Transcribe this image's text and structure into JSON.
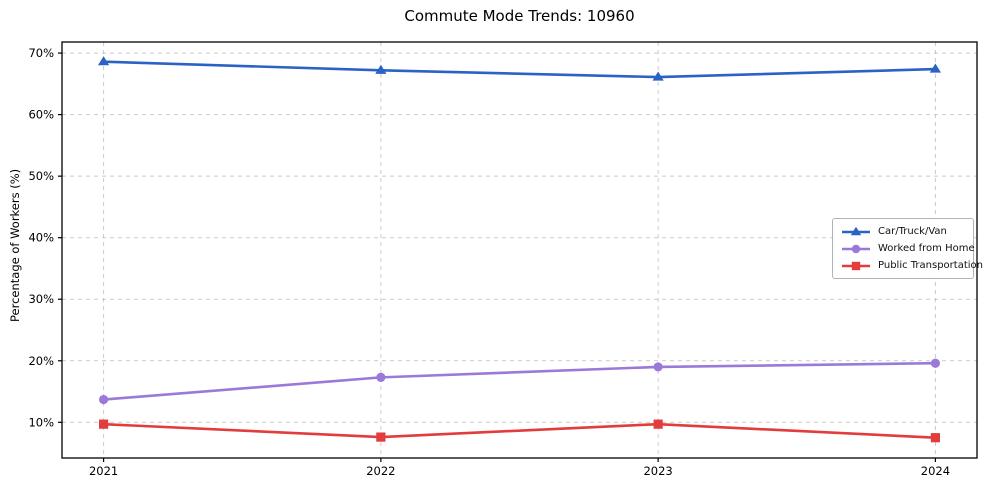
{
  "chart_data": {
    "type": "line",
    "title": "Commute Mode Trends: 10960",
    "xlabel": "",
    "ylabel": "Percentage of Workers (%)",
    "categories": [
      2021,
      2022,
      2023,
      2024
    ],
    "series": [
      {
        "name": "Car/Truck/Van",
        "marker": "triangle",
        "color": "#2b62c5",
        "values": [
          68.6,
          67.2,
          66.1,
          67.4
        ]
      },
      {
        "name": "Worked from Home",
        "marker": "circle",
        "color": "#9b79d9",
        "values": [
          13.7,
          17.3,
          19.0,
          19.6
        ]
      },
      {
        "name": "Public Transportation",
        "marker": "square",
        "color": "#e23c3c",
        "values": [
          9.7,
          7.6,
          9.7,
          7.5
        ]
      }
    ],
    "xlim": [
      2020.85,
      2024.15
    ],
    "ylim": [
      4.2,
      71.8
    ],
    "yticks": [
      10,
      20,
      30,
      40,
      50,
      60,
      70
    ],
    "ytick_suffix": "%",
    "grid": {
      "visible": true,
      "style": "dashed",
      "color": "#cacaca"
    },
    "legend_position": "right-middle",
    "colors": {
      "spine": "#000000",
      "background": "#ffffff",
      "tick_text": "#000000"
    }
  }
}
